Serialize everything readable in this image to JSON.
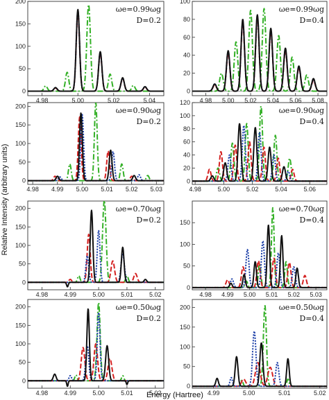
{
  "figure": {
    "xlabel": "Energy (Hartree)",
    "ylabel": "Relative Intensity (arbitrary units)"
  },
  "chart_data": [
    {
      "type": "line",
      "omega": "ωe=0.99ωg",
      "d_label": "D=0.2",
      "xlim": [
        4.972,
        5.048
      ],
      "ylim": [
        -10,
        200
      ],
      "xticks": [
        4.98,
        5.0,
        5.02,
        5.04
      ],
      "xtick_labels": [
        "4.98",
        "5.00",
        "5.02",
        "5.04"
      ],
      "yticks": [
        0,
        50,
        100,
        150,
        200
      ],
      "ytick_labels": [
        "0",
        "50",
        "100",
        "150",
        "200"
      ],
      "peaks": {
        "black": [
          [
            5.0,
            182,
            2.4
          ],
          [
            5.0125,
            88,
            2.4
          ],
          [
            5.025,
            30,
            2.4
          ],
          [
            5.0375,
            10,
            2.4
          ],
          [
            4.9875,
            8,
            2.4
          ]
        ],
        "blue": [
          [
            5.0,
            180,
            2.4
          ],
          [
            5.0125,
            87,
            2.4
          ],
          [
            5.025,
            29,
            2.4
          ],
          [
            5.0375,
            10,
            2.4
          ],
          [
            4.9875,
            8,
            2.4
          ]
        ],
        "red": [
          [
            5.0,
            176,
            2.4
          ],
          [
            5.0125,
            85,
            2.4
          ],
          [
            5.025,
            28,
            2.4
          ],
          [
            5.0375,
            9,
            2.4
          ],
          [
            4.9875,
            7,
            2.4
          ]
        ],
        "green": [
          [
            5.006,
            193,
            2.6
          ],
          [
            4.994,
            42,
            2.4
          ],
          [
            5.018,
            38,
            2.4
          ],
          [
            5.031,
            13,
            2.4
          ],
          [
            4.982,
            12,
            2.4
          ]
        ]
      }
    },
    {
      "type": "line",
      "omega": "ωe=0.99ωg",
      "d_label": "D=0.4",
      "xlim": [
        4.968,
        5.088
      ],
      "ylim": [
        -5,
        100
      ],
      "xticks": [
        4.98,
        5.0,
        5.02,
        5.04,
        5.06,
        5.08
      ],
      "xtick_labels": [
        "4.98",
        "5.00",
        "5.02",
        "5.04",
        "5.06",
        "5.08"
      ],
      "yticks": [
        0,
        20,
        40,
        60,
        80,
        100
      ],
      "ytick_labels": [
        "0",
        "20",
        "40",
        "60",
        "80",
        "100"
      ],
      "peaks": {
        "black": [
          [
            5.0,
            45,
            2.5
          ],
          [
            5.013,
            80,
            2.5
          ],
          [
            5.026,
            85,
            2.5
          ],
          [
            5.038,
            70,
            2.5
          ],
          [
            5.051,
            48,
            2.5
          ],
          [
            5.063,
            28,
            2.5
          ],
          [
            5.076,
            14,
            2.5
          ],
          [
            4.988,
            8,
            2.5
          ]
        ],
        "blue": [
          [
            5.0,
            44,
            2.5
          ],
          [
            5.013,
            78,
            2.5
          ],
          [
            5.026,
            83,
            2.5
          ],
          [
            5.038,
            68,
            2.5
          ],
          [
            5.051,
            47,
            2.5
          ],
          [
            5.063,
            27,
            2.5
          ],
          [
            5.076,
            13,
            2.5
          ],
          [
            4.988,
            8,
            2.5
          ]
        ],
        "red": [
          [
            5.0,
            42,
            2.5
          ],
          [
            5.013,
            76,
            2.5
          ],
          [
            5.026,
            81,
            2.5
          ],
          [
            5.038,
            66,
            2.5
          ],
          [
            5.051,
            45,
            2.5
          ],
          [
            5.063,
            26,
            2.5
          ],
          [
            5.076,
            12,
            2.5
          ],
          [
            4.988,
            7,
            2.5
          ]
        ],
        "green": [
          [
            5.007,
            55,
            2.6
          ],
          [
            5.02,
            90,
            2.6
          ],
          [
            5.032,
            92,
            2.6
          ],
          [
            5.045,
            62,
            2.6
          ],
          [
            5.057,
            38,
            2.6
          ],
          [
            5.07,
            18,
            2.6
          ],
          [
            4.994,
            20,
            2.6
          ]
        ]
      }
    },
    {
      "type": "line",
      "omega": "ωe=0.90ωg",
      "d_label": "D=0.2",
      "xlim": [
        4.978,
        5.033
      ],
      "ylim": [
        -10,
        210
      ],
      "xticks": [
        4.98,
        4.99,
        5.0,
        5.01,
        5.02,
        5.03
      ],
      "xtick_labels": [
        "4.98",
        "4.99",
        "5.00",
        "5.01",
        "5.02",
        "5.03"
      ],
      "yticks": [
        0,
        50,
        100,
        150,
        200
      ],
      "ytick_labels": [
        "0",
        "50",
        "100",
        "150",
        "200"
      ],
      "peaks": {
        "black": [
          [
            4.9995,
            182,
            2.0
          ],
          [
            5.0115,
            82,
            2.0
          ],
          [
            4.99,
            12,
            2.0
          ],
          [
            5.021,
            14,
            2.0
          ]
        ],
        "blue": [
          [
            5.0,
            178,
            2.0
          ],
          [
            5.0125,
            78,
            2.0
          ],
          [
            4.991,
            10,
            2.0
          ],
          [
            5.023,
            16,
            2.0
          ]
        ],
        "red": [
          [
            4.999,
            172,
            2.1
          ],
          [
            5.0105,
            80,
            2.1
          ],
          [
            4.989,
            12,
            2.0
          ],
          [
            5.02,
            12,
            2.0
          ]
        ],
        "green": [
          [
            5.0055,
            210,
            2.0
          ],
          [
            4.995,
            45,
            2.0
          ],
          [
            5.016,
            45,
            2.0
          ],
          [
            5.0265,
            14,
            2.0
          ]
        ]
      }
    },
    {
      "type": "line",
      "omega": "ωe=0.90ωg",
      "d_label": "D=0.4",
      "xlim": [
        4.978,
        5.072
      ],
      "ylim": [
        -5,
        120
      ],
      "xticks": [
        4.98,
        5.0,
        5.02,
        5.04,
        5.06
      ],
      "xtick_labels": [
        "4.98",
        "5.00",
        "5.02",
        "5.04",
        "5.06"
      ],
      "yticks": [
        0,
        20,
        40,
        60,
        80,
        100,
        120
      ],
      "ytick_labels": [
        "0",
        "20",
        "40",
        "60",
        "80",
        "100",
        "120"
      ],
      "peaks": {
        "black": [
          [
            5.001,
            28,
            2.2
          ],
          [
            5.011,
            88,
            2.2
          ],
          [
            5.022,
            82,
            2.2
          ],
          [
            5.032,
            52,
            2.2
          ],
          [
            5.042,
            22,
            2.2
          ],
          [
            4.992,
            8,
            2.2
          ]
        ],
        "blue": [
          [
            5.004,
            40,
            2.2
          ],
          [
            5.014,
            85,
            2.2
          ],
          [
            5.025,
            75,
            2.2
          ],
          [
            5.035,
            40,
            2.2
          ],
          [
            5.045,
            15,
            2.2
          ]
        ],
        "red": [
          [
            4.998,
            45,
            2.2
          ],
          [
            5.008,
            55,
            2.2
          ],
          [
            5.018,
            60,
            2.2
          ],
          [
            5.028,
            52,
            2.2
          ],
          [
            5.038,
            35,
            2.2
          ],
          [
            5.048,
            18,
            2.2
          ],
          [
            4.99,
            18,
            2.2
          ]
        ],
        "green": [
          [
            5.006,
            58,
            2.2
          ],
          [
            5.016,
            88,
            2.2
          ],
          [
            5.026,
            115,
            2.2
          ],
          [
            5.036,
            70,
            2.2
          ],
          [
            5.046,
            35,
            2.2
          ],
          [
            4.996,
            20,
            2.2
          ]
        ]
      }
    },
    {
      "type": "line",
      "omega": "ωe=0.70ωg",
      "d_label": "D=0.2",
      "xlim": [
        4.975,
        5.023
      ],
      "ylim": [
        -20,
        220
      ],
      "xticks": [
        4.98,
        4.99,
        5.0,
        5.01,
        5.02
      ],
      "xtick_labels": [
        "4.98",
        "4.99",
        "5.00",
        "5.01",
        "5.02"
      ],
      "yticks": [
        0,
        50,
        100,
        150,
        200
      ],
      "ytick_labels": [
        "0",
        "50",
        "100",
        "150",
        "200"
      ],
      "peaks": {
        "black": [
          [
            4.9975,
            195,
            1.9
          ],
          [
            5.0085,
            95,
            1.9
          ],
          [
            4.989,
            -12,
            1.2
          ],
          [
            5.0165,
            8,
            1.8
          ]
        ],
        "blue": [
          [
            4.996,
            72,
            2.0
          ],
          [
            5.0,
            140,
            2.0
          ],
          [
            5.0085,
            78,
            2.4
          ]
        ],
        "red": [
          [
            4.9965,
            130,
            2.2
          ],
          [
            5.005,
            58,
            2.6
          ],
          [
            5.013,
            24,
            2.4
          ],
          [
            4.99,
            8,
            2.0
          ]
        ],
        "green": [
          [
            5.002,
            222,
            2.5
          ],
          [
            4.993,
            18,
            1.8
          ],
          [
            5.01,
            18,
            1.8
          ]
        ]
      }
    },
    {
      "type": "line",
      "omega": "ωe=0.70ωg",
      "d_label": "D=0.4",
      "xlim": [
        4.974,
        5.035
      ],
      "ylim": [
        -5,
        200
      ],
      "xticks": [
        4.98,
        4.99,
        5.0,
        5.01,
        5.02,
        5.03
      ],
      "xtick_labels": [
        "4.98",
        "4.99",
        "5.00",
        "5.01",
        "5.02",
        "5.03"
      ],
      "yticks": [
        0,
        50,
        100,
        150
      ],
      "ytick_labels": [
        "0",
        "50",
        "100",
        "150"
      ],
      "peaks": {
        "black": [
          [
            4.9975,
            30,
            1.8
          ],
          [
            5.0025,
            60,
            1.8
          ],
          [
            5.0085,
            145,
            1.8
          ],
          [
            5.0145,
            120,
            1.8
          ],
          [
            5.0215,
            45,
            1.8
          ],
          [
            4.9915,
            10,
            1.8
          ]
        ],
        "blue": [
          [
            4.999,
            88,
            2.2
          ],
          [
            5.006,
            108,
            2.2
          ],
          [
            5.013,
            80,
            2.2
          ],
          [
            5.02,
            48,
            2.2
          ],
          [
            4.992,
            20,
            2.2
          ]
        ],
        "red": [
          [
            4.997,
            48,
            2.3
          ],
          [
            5.004,
            62,
            2.3
          ],
          [
            5.011,
            68,
            2.3
          ],
          [
            5.018,
            58,
            2.3
          ],
          [
            5.025,
            28,
            2.3
          ],
          [
            4.99,
            18,
            2.3
          ]
        ],
        "green": [
          [
            5.0045,
            55,
            1.9
          ],
          [
            5.0105,
            185,
            1.9
          ],
          [
            5.0165,
            60,
            1.9
          ],
          [
            4.9985,
            15,
            1.9
          ]
        ]
      }
    },
    {
      "type": "line",
      "omega": "ωe=0.50ωg",
      "d_label": "D=0.2",
      "xlim": [
        4.975,
        5.023
      ],
      "ylim": [
        -20,
        220
      ],
      "xticks": [
        4.98,
        4.99,
        5.0,
        5.01,
        5.02
      ],
      "xtick_labels": [
        "4.98",
        "4.99",
        "5.00",
        "5.01",
        "5.02"
      ],
      "yticks": [
        0,
        50,
        100,
        150,
        200
      ],
      "ytick_labels": [
        "0",
        "50",
        "100",
        "150",
        "200"
      ],
      "peaks": {
        "black": [
          [
            4.9963,
            195,
            1.8
          ],
          [
            5.003,
            95,
            2.2
          ],
          [
            4.989,
            -15,
            1.0
          ],
          [
            4.9845,
            18,
            2.0
          ],
          [
            5.01,
            -10,
            1.0
          ]
        ],
        "blue": [
          [
            4.996,
            95,
            2.2
          ],
          [
            5.0,
            185,
            2.0
          ],
          [
            4.99,
            14,
            1.8
          ]
        ],
        "red": [
          [
            4.9945,
            90,
            2.6
          ],
          [
            4.999,
            100,
            2.6
          ],
          [
            5.004,
            60,
            2.8
          ]
        ],
        "green": [
          [
            5.0,
            212,
            2.3
          ],
          [
            4.992,
            16,
            1.6
          ],
          [
            5.0085,
            14,
            1.6
          ]
        ]
      }
    },
    {
      "type": "line",
      "omega": "ωe=0.50ωg",
      "d_label": "D=0.4",
      "xlim": [
        4.984,
        5.022
      ],
      "ylim": [
        -5,
        220
      ],
      "xticks": [
        4.99,
        5.0,
        5.01,
        5.02
      ],
      "xtick_labels": [
        "4.99",
        "5.00",
        "5.01",
        "5.02"
      ],
      "yticks": [
        0,
        50,
        100,
        150,
        200
      ],
      "ytick_labels": [
        "0",
        "50",
        "100",
        "150",
        "200"
      ],
      "peaks": {
        "black": [
          [
            4.9965,
            75,
            2.0
          ],
          [
            5.0035,
            110,
            2.2
          ],
          [
            5.011,
            70,
            1.8
          ],
          [
            4.991,
            20,
            1.8
          ]
        ],
        "blue": [
          [
            5.0015,
            140,
            2.4
          ],
          [
            5.008,
            60,
            2.2
          ],
          [
            4.995,
            22,
            1.8
          ]
        ],
        "red": [
          [
            5.0025,
            60,
            3.4
          ],
          [
            5.006,
            48,
            3.4
          ],
          [
            4.9985,
            18,
            3.0
          ]
        ],
        "green": [
          [
            5.0045,
            205,
            2.2
          ],
          [
            4.998,
            15,
            1.6
          ],
          [
            5.011,
            18,
            1.6
          ]
        ]
      }
    }
  ],
  "legend_style": {
    "black": {
      "color": "#111111",
      "dash": ""
    },
    "blue": {
      "color": "#2244aa",
      "dash": "2.2,1.8"
    },
    "red": {
      "color": "#d42020",
      "dash": "7,3"
    },
    "green": {
      "color": "#33b026",
      "dash": "8,3,2,3"
    }
  }
}
